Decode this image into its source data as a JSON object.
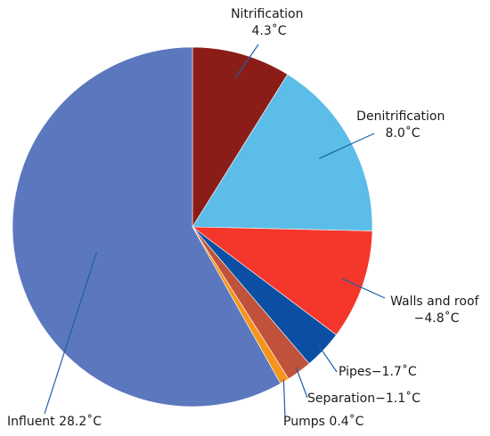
{
  "chart_data": {
    "type": "pie",
    "title": "",
    "start": "top",
    "direction": "clockwise",
    "slices": [
      {
        "name": "Nitrification",
        "value": 4.3,
        "label_lines": [
          "Nitrification",
          "4.3˚C"
        ],
        "color": "#8b1d18"
      },
      {
        "name": "Denitrification",
        "value": 8.0,
        "label_lines": [
          "Denitrification",
          "8.0˚C"
        ],
        "color": "#5cbde8"
      },
      {
        "name": "Walls and roof",
        "value": 4.8,
        "label_lines": [
          "Walls and roof",
          "−4.8˚C"
        ],
        "color": "#f5362a"
      },
      {
        "name": "Pipes",
        "value": 1.7,
        "label_lines": [
          "Pipes−1.7˚C"
        ],
        "color": "#0a4fa3"
      },
      {
        "name": "Separation",
        "value": 1.1,
        "label_lines": [
          "Separation−1.1˚C"
        ],
        "color": "#c0523c"
      },
      {
        "name": "Pumps",
        "value": 0.4,
        "label_lines": [
          "Pumps 0.4˚C"
        ],
        "color": "#f7941d"
      },
      {
        "name": "Influent",
        "value": 28.2,
        "label_lines": [
          "Influent 28.2˚C"
        ],
        "color": "#5b78be"
      }
    ]
  }
}
